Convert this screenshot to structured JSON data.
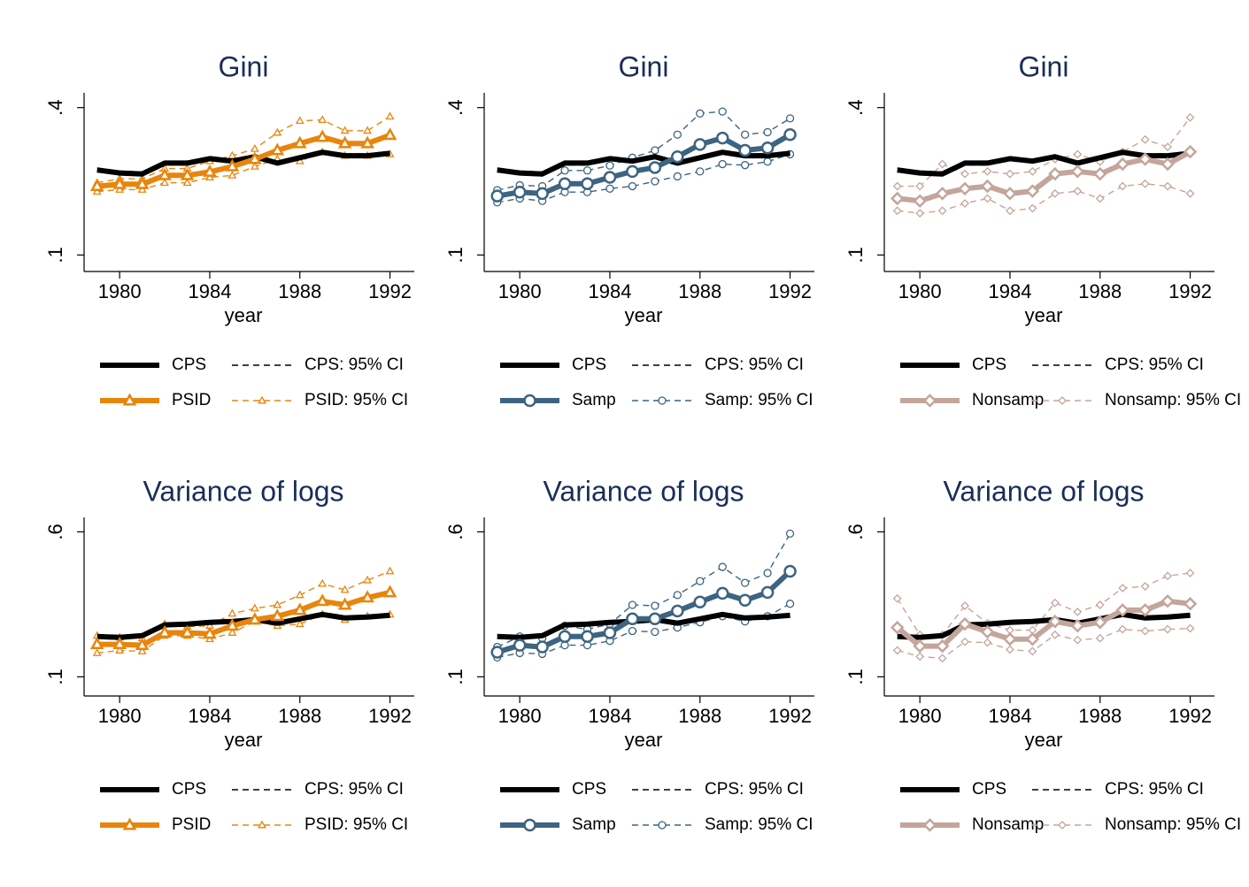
{
  "chart_data": [
    {
      "type": "line",
      "title": "Gini",
      "xlabel": "year",
      "x": [
        1979,
        1980,
        1981,
        1982,
        1983,
        1984,
        1985,
        1986,
        1987,
        1988,
        1989,
        1990,
        1991,
        1992
      ],
      "xlim": [
        1978.5,
        1993
      ],
      "xticks": [
        1980,
        1984,
        1988,
        1992
      ],
      "ylim": [
        0.07,
        0.43
      ],
      "yticks": [
        {
          "value": 0.1,
          "label": ".1"
        },
        {
          "value": 0.4,
          "label": ".4"
        }
      ],
      "series": [
        {
          "name": "CPS",
          "color": "#000000",
          "values": [
            0.273,
            0.267,
            0.265,
            0.287,
            0.287,
            0.296,
            0.291,
            0.3,
            0.287,
            0.298,
            0.309,
            0.302,
            0.302,
            0.307
          ]
        },
        {
          "name": "CPS: 95% CI",
          "color": "#000000",
          "lower": [
            0.269,
            0.263,
            0.261,
            0.283,
            0.283,
            0.292,
            0.287,
            0.296,
            0.283,
            0.294,
            0.305,
            0.298,
            0.298,
            0.303
          ],
          "upper": [
            0.277,
            0.271,
            0.269,
            0.291,
            0.291,
            0.3,
            0.295,
            0.304,
            0.291,
            0.302,
            0.313,
            0.306,
            0.306,
            0.311
          ]
        },
        {
          "name": "PSID",
          "color": "#e8850c",
          "marker": "triangle",
          "values": [
            0.24,
            0.244,
            0.244,
            0.262,
            0.262,
            0.269,
            0.28,
            0.295,
            0.313,
            0.327,
            0.34,
            0.327,
            0.327,
            0.344
          ]
        },
        {
          "name": "PSID: 95% CI",
          "color": "#e8850c",
          "marker": "triangle",
          "lower": [
            0.229,
            0.233,
            0.233,
            0.247,
            0.247,
            0.258,
            0.262,
            0.28,
            0.295,
            0.291,
            0.309,
            0.302,
            0.302,
            0.305
          ],
          "upper": [
            0.247,
            0.255,
            0.255,
            0.276,
            0.276,
            0.291,
            0.302,
            0.316,
            0.349,
            0.373,
            0.375,
            0.353,
            0.353,
            0.382
          ]
        }
      ]
    },
    {
      "type": "line",
      "title": "Gini",
      "xlabel": "year",
      "x": [
        1979,
        1980,
        1981,
        1982,
        1983,
        1984,
        1985,
        1986,
        1987,
        1988,
        1989,
        1990,
        1991,
        1992
      ],
      "xlim": [
        1978.5,
        1993
      ],
      "xticks": [
        1980,
        1984,
        1988,
        1992
      ],
      "ylim": [
        0.07,
        0.43
      ],
      "yticks": [
        {
          "value": 0.1,
          "label": ".1"
        },
        {
          "value": 0.4,
          "label": ".4"
        }
      ],
      "series": [
        {
          "name": "CPS",
          "color": "#000000",
          "values": [
            0.273,
            0.267,
            0.265,
            0.287,
            0.287,
            0.296,
            0.291,
            0.3,
            0.287,
            0.298,
            0.309,
            0.302,
            0.302,
            0.307
          ]
        },
        {
          "name": "CPS: 95% CI",
          "color": "#000000",
          "lower": [
            0.269,
            0.263,
            0.261,
            0.283,
            0.283,
            0.292,
            0.287,
            0.296,
            0.283,
            0.294,
            0.305,
            0.298,
            0.298,
            0.303
          ],
          "upper": [
            0.277,
            0.271,
            0.269,
            0.291,
            0.291,
            0.3,
            0.295,
            0.304,
            0.291,
            0.302,
            0.313,
            0.306,
            0.306,
            0.311
          ]
        },
        {
          "name": "Samp",
          "color": "#3d6480",
          "marker": "circle",
          "values": [
            0.22,
            0.228,
            0.225,
            0.245,
            0.245,
            0.258,
            0.27,
            0.278,
            0.3,
            0.325,
            0.338,
            0.313,
            0.318,
            0.345
          ]
        },
        {
          "name": "Samp: 95% CI",
          "color": "#3d6480",
          "marker": "circle",
          "lower": [
            0.207,
            0.215,
            0.21,
            0.228,
            0.228,
            0.235,
            0.24,
            0.25,
            0.26,
            0.27,
            0.285,
            0.283,
            0.29,
            0.305
          ],
          "upper": [
            0.232,
            0.242,
            0.24,
            0.272,
            0.272,
            0.282,
            0.298,
            0.313,
            0.345,
            0.388,
            0.392,
            0.345,
            0.35,
            0.378
          ]
        }
      ]
    },
    {
      "type": "line",
      "title": "Gini",
      "xlabel": "year",
      "x": [
        1979,
        1980,
        1981,
        1982,
        1983,
        1984,
        1985,
        1986,
        1987,
        1988,
        1989,
        1990,
        1991,
        1992
      ],
      "xlim": [
        1978.5,
        1993
      ],
      "xticks": [
        1980,
        1984,
        1988,
        1992
      ],
      "ylim": [
        0.07,
        0.43
      ],
      "yticks": [
        {
          "value": 0.1,
          "label": ".1"
        },
        {
          "value": 0.4,
          "label": ".4"
        }
      ],
      "series": [
        {
          "name": "CPS",
          "color": "#000000",
          "values": [
            0.273,
            0.267,
            0.265,
            0.287,
            0.287,
            0.296,
            0.291,
            0.3,
            0.287,
            0.298,
            0.309,
            0.302,
            0.302,
            0.307
          ]
        },
        {
          "name": "CPS: 95% CI",
          "color": "#000000",
          "lower": [
            0.269,
            0.263,
            0.261,
            0.283,
            0.283,
            0.292,
            0.287,
            0.296,
            0.283,
            0.294,
            0.305,
            0.298,
            0.298,
            0.303
          ],
          "upper": [
            0.277,
            0.271,
            0.269,
            0.291,
            0.291,
            0.3,
            0.295,
            0.304,
            0.291,
            0.302,
            0.313,
            0.306,
            0.306,
            0.311
          ]
        },
        {
          "name": "Nonsamp",
          "color": "#c4a59b",
          "marker": "diamond",
          "values": [
            0.215,
            0.21,
            0.225,
            0.235,
            0.24,
            0.225,
            0.23,
            0.265,
            0.27,
            0.265,
            0.285,
            0.295,
            0.285,
            0.31
          ]
        },
        {
          "name": "Nonsamp: 95% CI",
          "color": "#c4a59b",
          "marker": "diamond",
          "lower": [
            0.19,
            0.185,
            0.19,
            0.205,
            0.215,
            0.19,
            0.195,
            0.225,
            0.23,
            0.215,
            0.24,
            0.245,
            0.24,
            0.225
          ],
          "upper": [
            0.24,
            0.24,
            0.285,
            0.265,
            0.27,
            0.265,
            0.27,
            0.295,
            0.305,
            0.29,
            0.31,
            0.335,
            0.32,
            0.38
          ]
        }
      ]
    },
    {
      "type": "line",
      "title": "Variance of logs",
      "xlabel": "year",
      "x": [
        1979,
        1980,
        1981,
        1982,
        1983,
        1984,
        1985,
        1986,
        1987,
        1988,
        1989,
        1990,
        1991,
        1992
      ],
      "xlim": [
        1978.5,
        1993
      ],
      "xticks": [
        1980,
        1984,
        1988,
        1992
      ],
      "ylim": [
        0.04,
        0.65
      ],
      "yticks": [
        {
          "value": 0.1,
          "label": ".1"
        },
        {
          "value": 0.6,
          "label": ".6"
        }
      ],
      "series": [
        {
          "name": "CPS",
          "color": "#000000",
          "values": [
            0.239,
            0.236,
            0.242,
            0.279,
            0.282,
            0.288,
            0.291,
            0.297,
            0.285,
            0.3,
            0.315,
            0.303,
            0.306,
            0.312
          ]
        },
        {
          "name": "CPS: 95% CI",
          "color": "#000000",
          "lower": [
            0.233,
            0.23,
            0.236,
            0.273,
            0.276,
            0.282,
            0.285,
            0.291,
            0.279,
            0.294,
            0.309,
            0.297,
            0.3,
            0.306
          ],
          "upper": [
            0.245,
            0.242,
            0.248,
            0.285,
            0.288,
            0.294,
            0.297,
            0.303,
            0.291,
            0.306,
            0.321,
            0.309,
            0.312,
            0.318
          ]
        },
        {
          "name": "PSID",
          "color": "#e8850c",
          "marker": "triangle",
          "values": [
            0.212,
            0.212,
            0.209,
            0.252,
            0.252,
            0.248,
            0.276,
            0.297,
            0.309,
            0.33,
            0.361,
            0.348,
            0.373,
            0.391
          ]
        },
        {
          "name": "PSID: 95% CI",
          "color": "#e8850c",
          "marker": "triangle",
          "lower": [
            0.182,
            0.191,
            0.188,
            0.242,
            0.242,
            0.23,
            0.252,
            0.291,
            0.276,
            0.282,
            0.315,
            0.297,
            0.309,
            0.315
          ],
          "upper": [
            0.242,
            0.236,
            0.233,
            0.282,
            0.273,
            0.276,
            0.318,
            0.336,
            0.348,
            0.382,
            0.421,
            0.4,
            0.433,
            0.464
          ]
        }
      ]
    },
    {
      "type": "line",
      "title": "Variance of logs",
      "xlabel": "year",
      "x": [
        1979,
        1980,
        1981,
        1982,
        1983,
        1984,
        1985,
        1986,
        1987,
        1988,
        1989,
        1990,
        1991,
        1992
      ],
      "xlim": [
        1978.5,
        1993
      ],
      "xticks": [
        1980,
        1984,
        1988,
        1992
      ],
      "ylim": [
        0.04,
        0.65
      ],
      "yticks": [
        {
          "value": 0.1,
          "label": ".1"
        },
        {
          "value": 0.6,
          "label": ".6"
        }
      ],
      "series": [
        {
          "name": "CPS",
          "color": "#000000",
          "values": [
            0.239,
            0.236,
            0.242,
            0.279,
            0.282,
            0.288,
            0.291,
            0.297,
            0.285,
            0.3,
            0.315,
            0.303,
            0.306,
            0.312
          ]
        },
        {
          "name": "CPS: 95% CI",
          "color": "#000000",
          "lower": [
            0.233,
            0.23,
            0.236,
            0.273,
            0.276,
            0.282,
            0.285,
            0.291,
            0.279,
            0.294,
            0.309,
            0.297,
            0.3,
            0.306
          ],
          "upper": [
            0.245,
            0.242,
            0.248,
            0.285,
            0.288,
            0.294,
            0.297,
            0.303,
            0.291,
            0.306,
            0.321,
            0.309,
            0.312,
            0.318
          ]
        },
        {
          "name": "Samp",
          "color": "#3d6480",
          "marker": "circle",
          "values": [
            0.185,
            0.209,
            0.203,
            0.239,
            0.239,
            0.252,
            0.3,
            0.3,
            0.327,
            0.358,
            0.388,
            0.364,
            0.391,
            0.464
          ]
        },
        {
          "name": "Samp: 95% CI",
          "color": "#3d6480",
          "marker": "circle",
          "lower": [
            0.167,
            0.182,
            0.179,
            0.209,
            0.209,
            0.224,
            0.258,
            0.255,
            0.27,
            0.288,
            0.309,
            0.291,
            0.309,
            0.352
          ],
          "upper": [
            0.203,
            0.239,
            0.233,
            0.276,
            0.264,
            0.282,
            0.348,
            0.345,
            0.382,
            0.43,
            0.479,
            0.424,
            0.458,
            0.594
          ]
        }
      ]
    },
    {
      "type": "line",
      "title": "Variance of logs",
      "xlabel": "year",
      "x": [
        1979,
        1980,
        1981,
        1982,
        1983,
        1984,
        1985,
        1986,
        1987,
        1988,
        1989,
        1990,
        1991,
        1992
      ],
      "xlim": [
        1978.5,
        1993
      ],
      "xticks": [
        1980,
        1984,
        1988,
        1992
      ],
      "ylim": [
        0.04,
        0.65
      ],
      "yticks": [
        {
          "value": 0.1,
          "label": ".1"
        },
        {
          "value": 0.6,
          "label": ".6"
        }
      ],
      "series": [
        {
          "name": "CPS",
          "color": "#000000",
          "values": [
            0.239,
            0.236,
            0.242,
            0.279,
            0.282,
            0.288,
            0.291,
            0.297,
            0.285,
            0.3,
            0.315,
            0.303,
            0.306,
            0.312
          ]
        },
        {
          "name": "CPS: 95% CI",
          "color": "#000000",
          "lower": [
            0.233,
            0.23,
            0.236,
            0.273,
            0.276,
            0.282,
            0.285,
            0.291,
            0.279,
            0.294,
            0.309,
            0.297,
            0.3,
            0.306
          ],
          "upper": [
            0.245,
            0.242,
            0.248,
            0.285,
            0.288,
            0.294,
            0.297,
            0.303,
            0.291,
            0.306,
            0.321,
            0.309,
            0.312,
            0.318
          ]
        },
        {
          "name": "Nonsamp",
          "color": "#c4a59b",
          "marker": "diamond",
          "values": [
            0.27,
            0.206,
            0.206,
            0.282,
            0.255,
            0.23,
            0.23,
            0.291,
            0.276,
            0.288,
            0.33,
            0.33,
            0.361,
            0.352
          ]
        },
        {
          "name": "Nonsamp: 95% CI",
          "color": "#c4a59b",
          "marker": "diamond",
          "lower": [
            0.191,
            0.17,
            0.164,
            0.221,
            0.218,
            0.194,
            0.188,
            0.245,
            0.227,
            0.233,
            0.264,
            0.258,
            0.264,
            0.267
          ],
          "upper": [
            0.37,
            0.245,
            0.245,
            0.345,
            0.285,
            0.261,
            0.261,
            0.355,
            0.324,
            0.348,
            0.406,
            0.412,
            0.448,
            0.458
          ]
        }
      ]
    }
  ]
}
